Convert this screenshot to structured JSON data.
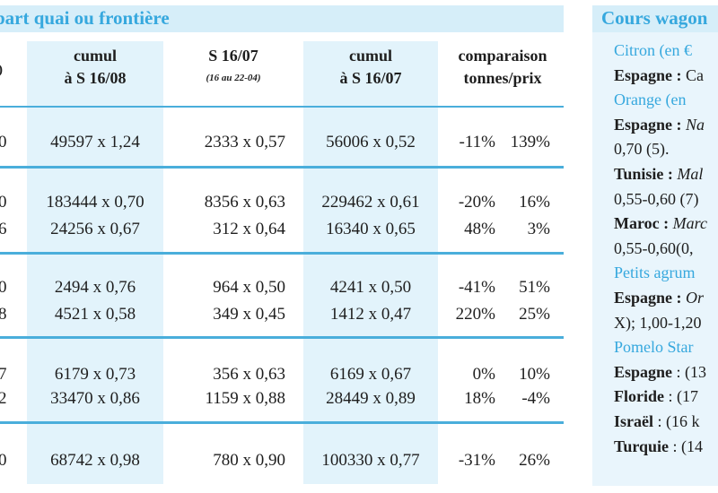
{
  "left": {
    "title": "part quai ou frontière",
    "headers": {
      "col0": ")",
      "col1_l1": "cumul",
      "col1_l2": "à S 16/08",
      "col2_l1": "S 16/07",
      "col2_l2": "(16 au 22-04)",
      "col3_l1": "cumul",
      "col3_l2": "à S 16/07",
      "col4_l1": "comparaison",
      "col4_l2": "tonnes/prix"
    },
    "rows": [
      {
        "c0": "0",
        "c1": "49597 x 1,24",
        "c2": "2333 x 0,57",
        "c3": "56006 x 0,52",
        "pct1": "-11%",
        "pct2": "139%"
      },
      {
        "c0": "0",
        "c1": "183444 x 0,70",
        "c2": "8356 x 0,63",
        "c3": "229462 x 0,61",
        "pct1": "-20%",
        "pct2": "16%"
      },
      {
        "c0": "6",
        "c1": "24256 x 0,67",
        "c2": "312 x 0,64",
        "c3": "16340 x 0,65",
        "pct1": "48%",
        "pct2": "3%"
      },
      {
        "c0": "0",
        "c1": "2494 x 0,76",
        "c2": "964 x 0,50",
        "c3": "4241 x 0,50",
        "pct1": "-41%",
        "pct2": "51%"
      },
      {
        "c0": "8",
        "c1": "4521 x 0,58",
        "c2": "349 x 0,45",
        "c3": "1412 x 0,47",
        "pct1": "220%",
        "pct2": "25%"
      },
      {
        "c0": "7",
        "c1": "6179 x 0,73",
        "c2": "356 x 0,63",
        "c3": "6169 x 0,67",
        "pct1": "0%",
        "pct2": "10%"
      },
      {
        "c0": "2",
        "c1": "33470 x 0,86",
        "c2": "1159 x 0,88",
        "c3": "28449 x 0,89",
        "pct1": "18%",
        "pct2": "-4%"
      },
      {
        "c0": "0",
        "c1": "68742 x 0,98",
        "c2": "780 x 0,90",
        "c3": "100330 x 0,77",
        "pct1": "-31%",
        "pct2": "26%"
      }
    ]
  },
  "right": {
    "title": "Cours wagon",
    "lines": [
      {
        "type": "prod",
        "text": "Citron (en €"
      },
      {
        "type": "body",
        "bold": "Espagne :",
        "rest": " Ca"
      },
      {
        "type": "prod",
        "text": "Orange (en"
      },
      {
        "type": "body",
        "bold": "Espagne :",
        "italic": " Na"
      },
      {
        "type": "plain",
        "text": "0,70 (5)."
      },
      {
        "type": "body",
        "bold": "Tunisie :",
        "italic": " Mal"
      },
      {
        "type": "plain",
        "text": "0,55-0,60 (7)"
      },
      {
        "type": "body",
        "bold": "Maroc :",
        "italic": " Marc"
      },
      {
        "type": "plain",
        "text": "0,55-0,60(0,"
      },
      {
        "type": "prod",
        "text": "Petits agrum"
      },
      {
        "type": "body",
        "bold": "Espagne :",
        "italic": " Or"
      },
      {
        "type": "plain",
        "text": "X); 1,00-1,20"
      },
      {
        "type": "prod",
        "text": "Pomelo Star"
      },
      {
        "type": "body",
        "bold": "Espagne",
        "rest": " : (13"
      },
      {
        "type": "body",
        "bold": "Floride",
        "rest": " : (17"
      },
      {
        "type": "body",
        "bold": "Israël",
        "rest": " : (16 k"
      },
      {
        "type": "body",
        "bold": "Turquie",
        "rest": " : (14"
      }
    ]
  }
}
